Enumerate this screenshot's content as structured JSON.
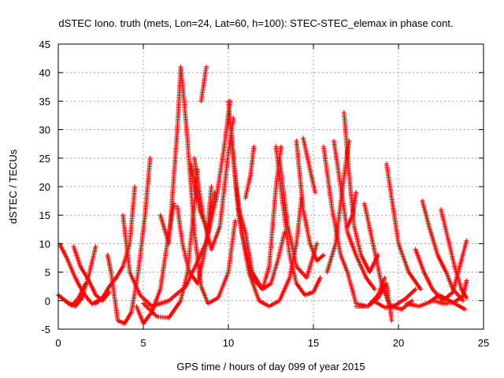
{
  "chart_data": {
    "type": "scatter",
    "title": "dSTEC Iono. truth (mets, Lon=24, Lat=60, h=100): STEC-STEC_elemax in phase cont.",
    "xlabel": "GPS time / hours of day 099 of year 2015",
    "ylabel": "dSTEC  / TECUs",
    "xlim": [
      0,
      25
    ],
    "ylim": [
      -5,
      45
    ],
    "xticks": [
      "0",
      "5",
      "10",
      "15",
      "20",
      "25"
    ],
    "yticks": [
      "-5",
      "0",
      "5",
      "10",
      "15",
      "20",
      "25",
      "30",
      "35",
      "40",
      "45"
    ],
    "grid": true,
    "legend": "none",
    "marker": "plus",
    "series_color": "#ff0000",
    "series": [
      {
        "points": [
          [
            0.1,
            9.8
          ],
          [
            0.5,
            7.5
          ],
          [
            1.0,
            4.0
          ],
          [
            1.5,
            1.2
          ],
          [
            2.0,
            -0.6
          ],
          [
            2.5,
            0.3
          ]
        ]
      },
      {
        "points": [
          [
            0.2,
            0.5
          ],
          [
            0.6,
            -0.5
          ],
          [
            1.0,
            -1.0
          ],
          [
            1.4,
            0.5
          ],
          [
            1.8,
            4.5
          ],
          [
            2.2,
            9.5
          ]
        ]
      },
      {
        "points": [
          [
            0.9,
            9.5
          ],
          [
            1.3,
            6.0
          ],
          [
            1.8,
            3.5
          ],
          [
            2.2,
            1.0
          ],
          [
            2.6,
            0.0
          ],
          [
            3.0,
            1.5
          ]
        ]
      },
      {
        "points": [
          [
            0.0,
            1.0
          ],
          [
            0.4,
            0.0
          ],
          [
            0.8,
            -0.8
          ],
          [
            1.2,
            0.5
          ],
          [
            1.6,
            3.0
          ]
        ]
      },
      {
        "points": [
          [
            2.2,
            -0.5
          ],
          [
            2.6,
            0.5
          ],
          [
            3.0,
            2.5
          ],
          [
            3.4,
            4.0
          ],
          [
            3.8,
            6.0
          ],
          [
            4.2,
            10.0
          ],
          [
            4.5,
            20.0
          ]
        ]
      },
      {
        "points": [
          [
            2.9,
            8.0
          ],
          [
            3.1,
            5.0
          ],
          [
            3.5,
            -3.5
          ],
          [
            3.9,
            -4.0
          ],
          [
            4.3,
            -2.0
          ],
          [
            4.7,
            5.0
          ],
          [
            5.1,
            15.0
          ],
          [
            5.4,
            25.0
          ]
        ]
      },
      {
        "points": [
          [
            4.6,
            -1.0
          ],
          [
            5.0,
            -4.0
          ],
          [
            5.5,
            -2.0
          ],
          [
            6.0,
            2.0
          ],
          [
            6.4,
            10.0
          ],
          [
            6.8,
            17.0
          ]
        ]
      },
      {
        "points": [
          [
            5.0,
            -0.5
          ],
          [
            5.8,
            -2.8
          ],
          [
            6.5,
            -3.0
          ],
          [
            7.2,
            0.0
          ],
          [
            7.6,
            5.0
          ],
          [
            7.9,
            14.0
          ],
          [
            8.2,
            23.0
          ]
        ]
      },
      {
        "points": [
          [
            3.8,
            15.0
          ],
          [
            4.2,
            5.0
          ],
          [
            4.8,
            1.0
          ],
          [
            5.5,
            -1.0
          ],
          [
            6.5,
            0.0
          ],
          [
            7.5,
            2.5
          ],
          [
            8.2,
            7.0
          ],
          [
            8.8,
            11.0
          ],
          [
            9.2,
            19.0
          ]
        ]
      },
      {
        "points": [
          [
            6.0,
            15.0
          ],
          [
            6.5,
            10.0
          ],
          [
            7.0,
            30.0
          ],
          [
            7.2,
            41.0
          ]
        ]
      },
      {
        "points": [
          [
            7.2,
            41.0
          ],
          [
            7.4,
            35.0
          ],
          [
            7.6,
            28.0
          ],
          [
            7.8,
            20.0
          ],
          [
            8.0,
            12.0
          ],
          [
            8.4,
            2.5
          ],
          [
            8.8,
            -0.5
          ],
          [
            9.4,
            0.5
          ],
          [
            10.0,
            5.0
          ],
          [
            10.4,
            14.0
          ]
        ]
      },
      {
        "points": [
          [
            7.0,
            16.5
          ],
          [
            7.3,
            10.0
          ],
          [
            7.7,
            5.0
          ],
          [
            8.2,
            3.0
          ],
          [
            8.7,
            10.0
          ],
          [
            9.0,
            20.0
          ]
        ]
      },
      {
        "points": [
          [
            7.8,
            24.0
          ],
          [
            8.3,
            16.0
          ],
          [
            8.8,
            12.0
          ],
          [
            9.3,
            18.0
          ],
          [
            9.8,
            28.0
          ],
          [
            10.1,
            35.0
          ]
        ]
      },
      {
        "points": [
          [
            8.4,
            35.0
          ],
          [
            8.7,
            41.0
          ]
        ]
      },
      {
        "points": [
          [
            8.0,
            25.0
          ],
          [
            8.5,
            15.0
          ],
          [
            9.0,
            9.0
          ],
          [
            9.5,
            13.0
          ],
          [
            10.0,
            26.0
          ],
          [
            10.3,
            32.0
          ]
        ]
      },
      {
        "points": [
          [
            10.0,
            35.0
          ],
          [
            10.4,
            22.0
          ],
          [
            10.8,
            12.0
          ],
          [
            11.4,
            4.0
          ],
          [
            12.0,
            2.0
          ],
          [
            12.5,
            3.0
          ],
          [
            12.9,
            7.0
          ],
          [
            13.3,
            12.0
          ]
        ]
      },
      {
        "points": [
          [
            10.2,
            28.0
          ],
          [
            10.6,
            15.0
          ],
          [
            11.2,
            5.0
          ],
          [
            11.8,
            0.0
          ],
          [
            12.4,
            -1.0
          ],
          [
            13.0,
            0.0
          ],
          [
            13.6,
            4.0
          ],
          [
            14.0,
            10.0
          ],
          [
            14.3,
            18.0
          ]
        ]
      },
      {
        "points": [
          [
            10.6,
            16.0
          ],
          [
            11.0,
            12.0
          ],
          [
            11.4,
            5.0
          ],
          [
            12.0,
            2.0
          ],
          [
            12.4,
            6.0
          ],
          [
            12.8,
            20.0
          ],
          [
            13.1,
            27.0
          ]
        ]
      },
      {
        "points": [
          [
            11.0,
            18.0
          ],
          [
            11.3,
            22.0
          ],
          [
            11.5,
            27.0
          ]
        ]
      },
      {
        "points": [
          [
            12.8,
            27.0
          ],
          [
            13.2,
            17.0
          ],
          [
            13.6,
            8.0
          ],
          [
            14.0,
            3.0
          ],
          [
            14.5,
            1.0
          ],
          [
            15.0,
            1.5
          ],
          [
            15.4,
            4.0
          ]
        ]
      },
      {
        "points": [
          [
            13.0,
            25.0
          ],
          [
            13.5,
            13.0
          ],
          [
            14.0,
            6.0
          ],
          [
            14.6,
            4.0
          ],
          [
            15.2,
            10.0
          ]
        ]
      },
      {
        "points": [
          [
            14.0,
            28.0
          ],
          [
            14.4,
            16.0
          ],
          [
            14.8,
            10.0
          ],
          [
            15.2,
            7.0
          ],
          [
            15.6,
            8.0
          ]
        ]
      },
      {
        "points": [
          [
            14.4,
            28.5
          ],
          [
            14.8,
            23.0
          ],
          [
            15.1,
            19.0
          ]
        ]
      },
      {
        "points": [
          [
            15.6,
            27.0
          ],
          [
            16.1,
            16.0
          ],
          [
            16.6,
            8.0
          ],
          [
            17.0,
            5.0
          ],
          [
            17.5,
            -0.5
          ],
          [
            18.2,
            -1.0
          ],
          [
            18.8,
            1.0
          ],
          [
            19.2,
            4.0
          ]
        ]
      },
      {
        "points": [
          [
            16.2,
            28.0
          ],
          [
            16.6,
            20.0
          ],
          [
            17.0,
            12.0
          ],
          [
            17.5,
            8.0
          ],
          [
            18.1,
            4.0
          ],
          [
            18.6,
            2.0
          ]
        ]
      },
      {
        "points": [
          [
            16.8,
            33.0
          ],
          [
            17.1,
            22.0
          ],
          [
            17.4,
            13.0
          ],
          [
            17.8,
            8.0
          ],
          [
            18.3,
            5.0
          ],
          [
            18.8,
            8.0
          ]
        ]
      },
      {
        "points": [
          [
            15.8,
            5.0
          ],
          [
            16.3,
            10.0
          ],
          [
            16.6,
            17.0
          ],
          [
            16.9,
            24.0
          ],
          [
            17.1,
            28.0
          ]
        ]
      },
      {
        "points": [
          [
            17.0,
            13.0
          ],
          [
            17.3,
            15.0
          ],
          [
            17.5,
            19.0
          ]
        ]
      },
      {
        "points": [
          [
            18.0,
            17.0
          ],
          [
            18.5,
            10.0
          ],
          [
            19.0,
            3.0
          ],
          [
            19.5,
            -1.0
          ],
          [
            20.2,
            -1.5
          ],
          [
            20.8,
            0.0
          ]
        ]
      },
      {
        "points": [
          [
            19.3,
            24.0
          ],
          [
            19.6,
            18.0
          ],
          [
            20.0,
            10.0
          ],
          [
            20.6,
            5.0
          ],
          [
            21.3,
            2.0
          ]
        ]
      },
      {
        "points": [
          [
            17.5,
            -1.0
          ],
          [
            18.2,
            -1.0
          ],
          [
            18.8,
            0.5
          ],
          [
            19.3,
            3.0
          ],
          [
            19.6,
            -3.5
          ]
        ]
      },
      {
        "points": [
          [
            18.5,
            0.0
          ],
          [
            19.2,
            -1.2
          ],
          [
            19.8,
            -0.8
          ],
          [
            20.4,
            0.3
          ],
          [
            21.0,
            2.0
          ]
        ]
      },
      {
        "points": [
          [
            21.4,
            17.5
          ],
          [
            21.8,
            13.0
          ],
          [
            22.3,
            8.0
          ],
          [
            22.8,
            5.0
          ],
          [
            23.2,
            2.0
          ],
          [
            23.8,
            0.0
          ]
        ]
      },
      {
        "points": [
          [
            22.5,
            16.0
          ],
          [
            22.9,
            11.0
          ],
          [
            23.3,
            6.0
          ],
          [
            23.7,
            2.0
          ],
          [
            24.0,
            0.5
          ]
        ]
      },
      {
        "points": [
          [
            21.0,
            9.0
          ],
          [
            21.5,
            5.0
          ],
          [
            22.0,
            2.0
          ],
          [
            22.6,
            0.0
          ],
          [
            23.2,
            1.5
          ],
          [
            23.6,
            6.0
          ],
          [
            24.0,
            10.5
          ]
        ]
      },
      {
        "points": [
          [
            20.5,
            -0.5
          ],
          [
            21.2,
            -1.0
          ],
          [
            21.8,
            -0.3
          ],
          [
            22.4,
            1.0
          ],
          [
            23.0,
            0.0
          ],
          [
            23.6,
            -1.0
          ],
          [
            23.9,
            -1.5
          ]
        ]
      },
      {
        "points": [
          [
            22.0,
            0.0
          ],
          [
            22.7,
            -0.5
          ],
          [
            23.3,
            -0.2
          ],
          [
            23.8,
            0.8
          ],
          [
            24.0,
            3.5
          ]
        ]
      }
    ]
  }
}
